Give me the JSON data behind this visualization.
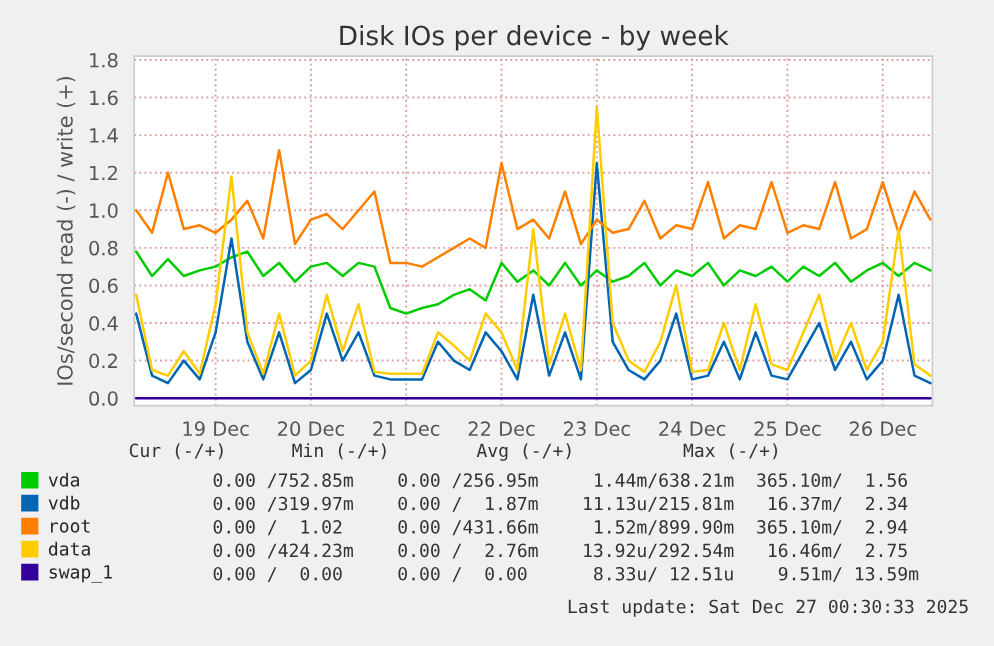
{
  "chart_data": {
    "type": "line",
    "title": "Disk IOs per device - by week",
    "ylabel": "IOs/second read (-) / write (+)",
    "x": [
      "2025-12-18T04:00",
      "2025-12-18T08:00",
      "2025-12-18T12:00",
      "2025-12-18T16:00",
      "2025-12-18T20:00",
      "2025-12-19T00:00",
      "2025-12-19T04:00",
      "2025-12-19T08:00",
      "2025-12-19T12:00",
      "2025-12-19T16:00",
      "2025-12-19T20:00",
      "2025-12-20T00:00",
      "2025-12-20T04:00",
      "2025-12-20T08:00",
      "2025-12-20T12:00",
      "2025-12-20T16:00",
      "2025-12-20T20:00",
      "2025-12-21T00:00",
      "2025-12-21T04:00",
      "2025-12-21T08:00",
      "2025-12-21T12:00",
      "2025-12-21T16:00",
      "2025-12-21T20:00",
      "2025-12-22T00:00",
      "2025-12-22T04:00",
      "2025-12-22T08:00",
      "2025-12-22T12:00",
      "2025-12-22T16:00",
      "2025-12-22T20:00",
      "2025-12-23T00:00",
      "2025-12-23T04:00",
      "2025-12-23T08:00",
      "2025-12-23T12:00",
      "2025-12-23T16:00",
      "2025-12-23T20:00",
      "2025-12-24T00:00",
      "2025-12-24T04:00",
      "2025-12-24T08:00",
      "2025-12-24T12:00",
      "2025-12-24T16:00",
      "2025-12-24T20:00",
      "2025-12-25T00:00",
      "2025-12-25T04:00",
      "2025-12-25T08:00",
      "2025-12-25T12:00",
      "2025-12-25T16:00",
      "2025-12-25T20:00",
      "2025-12-26T00:00",
      "2025-12-26T04:00",
      "2025-12-26T08:00",
      "2025-12-26T12:00"
    ],
    "series": [
      {
        "name": "vda",
        "color": "#00cc00",
        "values": [
          0.78,
          0.65,
          0.74,
          0.65,
          0.68,
          0.7,
          0.75,
          0.78,
          0.65,
          0.72,
          0.62,
          0.7,
          0.72,
          0.65,
          0.72,
          0.7,
          0.48,
          0.45,
          0.48,
          0.5,
          0.55,
          0.58,
          0.52,
          0.72,
          0.62,
          0.68,
          0.6,
          0.72,
          0.6,
          0.68,
          0.62,
          0.65,
          0.72,
          0.6,
          0.68,
          0.65,
          0.72,
          0.6,
          0.68,
          0.65,
          0.7,
          0.62,
          0.7,
          0.65,
          0.72,
          0.62,
          0.68,
          0.72,
          0.65,
          0.72,
          0.68
        ]
      },
      {
        "name": "vdb",
        "color": "#0066b3",
        "values": [
          0.45,
          0.12,
          0.08,
          0.2,
          0.1,
          0.35,
          0.85,
          0.3,
          0.1,
          0.35,
          0.08,
          0.15,
          0.45,
          0.2,
          0.35,
          0.12,
          0.1,
          0.1,
          0.1,
          0.3,
          0.2,
          0.15,
          0.35,
          0.25,
          0.1,
          0.55,
          0.12,
          0.35,
          0.1,
          1.25,
          0.3,
          0.15,
          0.1,
          0.2,
          0.45,
          0.1,
          0.12,
          0.3,
          0.1,
          0.35,
          0.12,
          0.1,
          0.25,
          0.4,
          0.15,
          0.3,
          0.1,
          0.2,
          0.55,
          0.12,
          0.08
        ]
      },
      {
        "name": "root",
        "color": "#ff8000",
        "values": [
          1.0,
          0.88,
          1.2,
          0.9,
          0.92,
          0.88,
          0.95,
          1.05,
          0.85,
          1.32,
          0.82,
          0.95,
          0.98,
          0.9,
          1.0,
          1.1,
          0.72,
          0.72,
          0.7,
          0.75,
          0.8,
          0.85,
          0.8,
          1.25,
          0.9,
          0.95,
          0.85,
          1.1,
          0.82,
          0.95,
          0.88,
          0.9,
          1.05,
          0.85,
          0.92,
          0.9,
          1.15,
          0.85,
          0.92,
          0.9,
          1.15,
          0.88,
          0.92,
          0.9,
          1.15,
          0.85,
          0.9,
          1.15,
          0.88,
          1.1,
          0.95
        ]
      },
      {
        "name": "data",
        "color": "#ffcc00",
        "values": [
          0.55,
          0.15,
          0.12,
          0.25,
          0.13,
          0.5,
          1.18,
          0.35,
          0.13,
          0.45,
          0.12,
          0.2,
          0.55,
          0.25,
          0.5,
          0.14,
          0.13,
          0.13,
          0.13,
          0.35,
          0.28,
          0.2,
          0.45,
          0.35,
          0.15,
          0.9,
          0.18,
          0.45,
          0.15,
          1.55,
          0.4,
          0.2,
          0.14,
          0.3,
          0.6,
          0.14,
          0.15,
          0.4,
          0.15,
          0.5,
          0.18,
          0.15,
          0.35,
          0.55,
          0.2,
          0.4,
          0.15,
          0.3,
          0.9,
          0.18,
          0.12
        ]
      },
      {
        "name": "swap_1",
        "color": "#330099",
        "values": [
          0,
          0,
          0,
          0,
          0,
          0,
          0,
          0,
          0,
          0,
          0,
          0,
          0,
          0,
          0,
          0,
          0,
          0,
          0,
          0,
          0,
          0,
          0,
          0,
          0,
          0,
          0,
          0,
          0,
          0,
          0,
          0,
          0,
          0,
          0,
          0,
          0,
          0,
          0,
          0,
          0,
          0,
          0,
          0,
          0,
          0,
          0,
          0,
          0,
          0,
          0
        ]
      }
    ],
    "xlim": [
      "2025-12-18T03:30",
      "2025-12-26T12:30"
    ],
    "xticks": [
      {
        "value": "2025-12-19",
        "label": "19 Dec"
      },
      {
        "value": "2025-12-20",
        "label": "20 Dec"
      },
      {
        "value": "2025-12-21",
        "label": "21 Dec"
      },
      {
        "value": "2025-12-22",
        "label": "22 Dec"
      },
      {
        "value": "2025-12-23",
        "label": "23 Dec"
      },
      {
        "value": "2025-12-24",
        "label": "24 Dec"
      },
      {
        "value": "2025-12-25",
        "label": "25 Dec"
      },
      {
        "value": "2025-12-26",
        "label": "26 Dec"
      }
    ],
    "ylim": [
      -0.04,
      1.82
    ],
    "yticks": [
      {
        "value": 0,
        "label": "0.0"
      },
      {
        "value": 0.2,
        "label": "0.2"
      },
      {
        "value": 0.4,
        "label": "0.4"
      },
      {
        "value": 0.6,
        "label": "0.6"
      },
      {
        "value": 0.8,
        "label": "0.8"
      },
      {
        "value": 1.0,
        "label": "1.0"
      },
      {
        "value": 1.2,
        "label": "1.2"
      },
      {
        "value": 1.4,
        "label": "1.4"
      },
      {
        "value": 1.6,
        "label": "1.6"
      },
      {
        "value": 1.8,
        "label": "1.8"
      }
    ],
    "grid": true,
    "legend": "bottom",
    "marker": "none",
    "line_style": "solid",
    "annotations": [
      "          Cur (-/+)      Min (-/+)        Avg (-/+)          Max (-/+)",
      "    0.00 /752.85m    0.00 /256.95m     1.44m/638.21m  365.10m/  1.56",
      "    0.00 /319.97m    0.00 /  1.87m    11.13u/215.81m   16.37m/  2.34",
      "    0.00 /  1.02     0.00 /431.66m     1.52m/899.90m  365.10m/  2.94",
      "    0.00 /424.23m    0.00 /  2.76m    13.92u/292.54m   16.46m/  2.75",
      "    0.00 /  0.00     0.00 /  0.00      8.33u/ 12.51u    9.51m/ 13.59m",
      "Last update: Sat Dec 27 00:30:33 2025"
    ]
  }
}
